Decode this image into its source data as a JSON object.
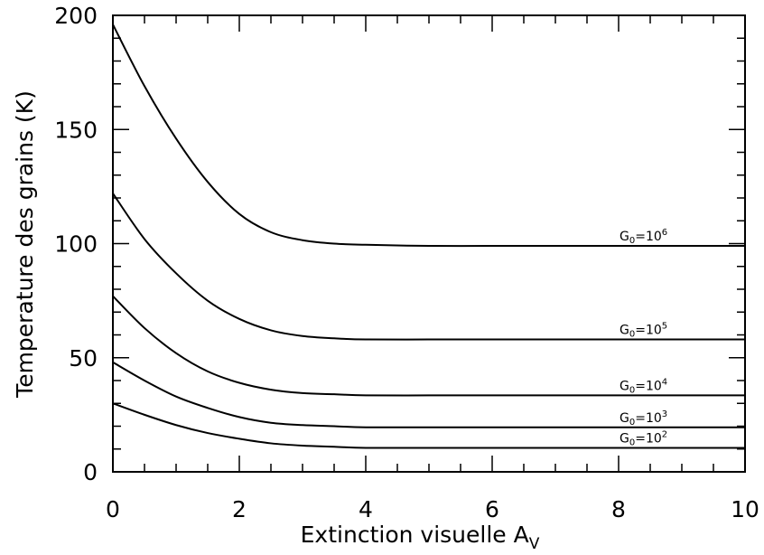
{
  "chart_data": {
    "type": "line",
    "title": "",
    "xlabel": "Extinction visuelle A",
    "xlabel_sub": "V",
    "ylabel": "Temperature des grains (K)",
    "xlim": [
      0,
      10
    ],
    "ylim": [
      0,
      200
    ],
    "x_ticks": [
      0,
      2,
      4,
      6,
      8,
      10
    ],
    "y_ticks": [
      0,
      50,
      100,
      150,
      200
    ],
    "x_minor_step": 0.5,
    "y_minor_step": 10,
    "grid": false,
    "series": [
      {
        "name": "G0=10^6",
        "label_base": "G",
        "label_sub": "0",
        "label_eq": "=10",
        "label_sup": "6",
        "x": [
          0,
          0.5,
          1,
          1.5,
          2,
          2.5,
          3,
          3.5,
          4,
          5,
          6,
          7,
          8,
          9,
          10
        ],
        "y": [
          196,
          169,
          146,
          127,
          113,
          105,
          101.5,
          100,
          99.5,
          99,
          99,
          99,
          99,
          99,
          99
        ]
      },
      {
        "name": "G0=10^5",
        "label_base": "G",
        "label_sub": "0",
        "label_eq": "=10",
        "label_sup": "5",
        "x": [
          0,
          0.5,
          1,
          1.5,
          2,
          2.5,
          3,
          3.5,
          4,
          5,
          6,
          7,
          8,
          9,
          10
        ],
        "y": [
          122,
          102,
          87,
          75,
          67,
          62,
          59.5,
          58.5,
          58,
          58,
          58,
          58,
          58,
          58,
          58
        ]
      },
      {
        "name": "G0=10^4",
        "label_base": "G",
        "label_sub": "0",
        "label_eq": "=10",
        "label_sup": "4",
        "x": [
          0,
          0.5,
          1,
          1.5,
          2,
          2.5,
          3,
          3.5,
          4,
          5,
          6,
          7,
          8,
          9,
          10
        ],
        "y": [
          77,
          63,
          52,
          44,
          39,
          36,
          34.5,
          34,
          33.5,
          33.5,
          33.5,
          33.5,
          33.5,
          33.5,
          33.5
        ]
      },
      {
        "name": "G0=10^3",
        "label_base": "G",
        "label_sub": "0",
        "label_eq": "=10",
        "label_sup": "3",
        "x": [
          0,
          0.5,
          1,
          1.5,
          2,
          2.5,
          3,
          3.5,
          4,
          5,
          6,
          7,
          8,
          9,
          10
        ],
        "y": [
          48,
          40,
          33,
          28,
          24,
          21.5,
          20.5,
          20,
          19.5,
          19.5,
          19.5,
          19.5,
          19.5,
          19.5,
          19.5
        ]
      },
      {
        "name": "G0=10^2",
        "label_base": "G",
        "label_sub": "0",
        "label_eq": "=10",
        "label_sup": "2",
        "x": [
          0,
          0.5,
          1,
          1.5,
          2,
          2.5,
          3,
          3.5,
          4,
          5,
          6,
          7,
          8,
          9,
          10
        ],
        "y": [
          30,
          25,
          20.5,
          17,
          14.5,
          12.5,
          11.5,
          11,
          10.5,
          10.5,
          10.5,
          10.5,
          10.5,
          10.5,
          10.5
        ]
      }
    ]
  }
}
